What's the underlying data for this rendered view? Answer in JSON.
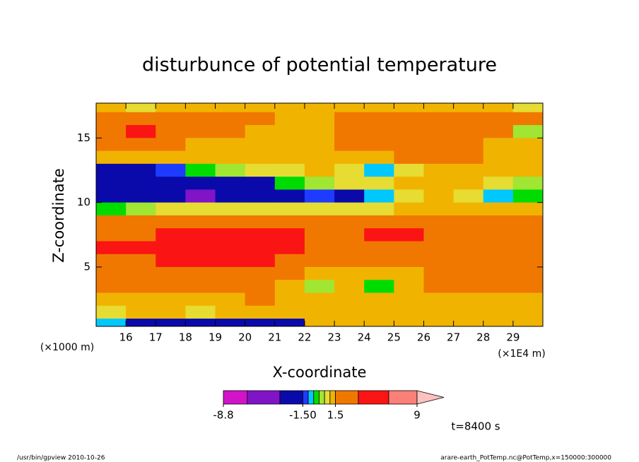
{
  "chart_data": {
    "type": "contour",
    "title": "disturbunce of potential temperature",
    "xlabel": "X-coordinate",
    "ylabel": "Z-coordinate",
    "x_unit": "(×1E4 m)",
    "y_unit": "(×1000 m)",
    "annotation": "t=8400 s",
    "footer_left": "/usr/bin/gpview   2010-10-26",
    "footer_right": "arare-earth_PotTemp.nc@PotTemp,x=150000:300000",
    "xlim": [
      15,
      30
    ],
    "ylim": [
      0.4,
      17.7
    ],
    "xticks": [
      16,
      17,
      18,
      19,
      20,
      21,
      22,
      23,
      24,
      25,
      26,
      27,
      28,
      29
    ],
    "yticks": [
      5,
      10,
      15
    ],
    "x": [
      15.5,
      16.5,
      17.5,
      18.5,
      19.5,
      20.5,
      21.5,
      22.5,
      23.5,
      24.5,
      25.5,
      26.5,
      27.5,
      28.5,
      29.5
    ],
    "z": [
      17.5,
      16.5,
      15.5,
      14.5,
      13.5,
      12.5,
      11.5,
      10.5,
      9.5,
      8.5,
      7.5,
      6.5,
      5.5,
      4.5,
      3.5,
      2.5,
      1.5,
      0.5
    ],
    "values": [
      [
        1.2,
        0.8,
        1.2,
        1.2,
        1.2,
        1.1,
        1.2,
        1.2,
        1.2,
        1.2,
        1.2,
        1.2,
        1.2,
        1.2,
        0.8
      ],
      [
        2.5,
        2.5,
        1.8,
        2.5,
        2.5,
        1.8,
        1.2,
        1.2,
        1.8,
        2.5,
        2.5,
        2.5,
        1.8,
        2.5,
        1.8
      ],
      [
        2.5,
        5,
        2.5,
        2.5,
        1.8,
        1.2,
        1.2,
        1.2,
        2.5,
        2.5,
        2.5,
        2.5,
        2.5,
        1.8,
        0.3
      ],
      [
        1.8,
        2.5,
        1.8,
        1.2,
        1.2,
        1.2,
        1.2,
        1.2,
        1.8,
        1.8,
        1.8,
        1.8,
        1.8,
        1.2,
        1.2
      ],
      [
        1.2,
        1.2,
        1.2,
        1.2,
        1.2,
        1.2,
        1.2,
        1.2,
        1.2,
        1.2,
        1.8,
        1.8,
        1.8,
        1.2,
        1.2
      ],
      [
        -2,
        -2,
        -1.2,
        -0.2,
        0.3,
        0.8,
        0.7,
        1.2,
        0.7,
        -0.7,
        0.8,
        1.2,
        1.2,
        1.2,
        1.2
      ],
      [
        -2.5,
        -2.5,
        -2.5,
        -2.5,
        -2.5,
        -2,
        -0.2,
        0.3,
        0.7,
        0.8,
        1.2,
        1.2,
        1.2,
        0.8,
        0.3
      ],
      [
        -2.5,
        -3,
        -3,
        -4,
        -3,
        -2.5,
        -2.5,
        -1.2,
        -2,
        -0.7,
        0.8,
        1.2,
        0.8,
        -0.7,
        -0.2
      ],
      [
        -0.2,
        0.3,
        0.8,
        0.8,
        0.8,
        0.8,
        0.8,
        0.8,
        0.8,
        0.8,
        1.2,
        1.2,
        1.2,
        1.2,
        1.2
      ],
      [
        2.5,
        2.5,
        2.5,
        2.5,
        2.5,
        2.5,
        2.5,
        2.5,
        2.5,
        2.5,
        2.5,
        2.5,
        2.5,
        2.5,
        2.5
      ],
      [
        2.5,
        2.5,
        5,
        5,
        5,
        5,
        5,
        2.5,
        2.5,
        5,
        5,
        2.5,
        2.5,
        2.5,
        2.5
      ],
      [
        5,
        5,
        5,
        5,
        5,
        5,
        5,
        2.5,
        2.5,
        2.5,
        2.5,
        2.5,
        2.5,
        2.5,
        2.5
      ],
      [
        2.5,
        2.5,
        5,
        5,
        5,
        5,
        2.5,
        2.5,
        2.5,
        2.5,
        2.5,
        2.5,
        2.5,
        2.5,
        2.5
      ],
      [
        2.5,
        2.5,
        2.5,
        2.5,
        2.5,
        2.5,
        1.8,
        1.2,
        1.2,
        1.2,
        1.2,
        1.8,
        2.5,
        2.5,
        2.5
      ],
      [
        1.8,
        1.8,
        1.8,
        1.8,
        1.8,
        1.8,
        1.2,
        0.3,
        1.2,
        -0.2,
        1.2,
        1.8,
        1.8,
        1.8,
        1.8
      ],
      [
        1.2,
        1.2,
        1.2,
        1.2,
        1.2,
        1.8,
        1.2,
        1.2,
        1.2,
        1.2,
        1.2,
        1.2,
        1.2,
        1.2,
        1.2
      ],
      [
        0.8,
        1.2,
        1.2,
        0.8,
        1.2,
        1.2,
        1.2,
        1.2,
        1.2,
        1.2,
        1.2,
        1.2,
        1.2,
        1.2,
        1.2
      ],
      [
        -0.7,
        -2,
        -2.5,
        -2.5,
        -3,
        -3,
        -2,
        1.2,
        1.2,
        1.2,
        1.2,
        1.2,
        1.2,
        1.2,
        1.2
      ]
    ],
    "levels": [
      -8.8,
      -6.6,
      -3.6,
      -1.5,
      -1.0,
      -0.5,
      0,
      0.5,
      1.0,
      1.5,
      3.6,
      6.4,
      9
    ],
    "colors": [
      "#d214c8",
      "#8214c8",
      "#0a0aaa",
      "#1e3cff",
      "#00c8ff",
      "#00dc00",
      "#a0e632",
      "#e6dc32",
      "#f0b400",
      "#f07800",
      "#fa1414",
      "#fa8078"
    ],
    "over_color": "#ffc0c0",
    "colorbar_ticks": [
      -8.8,
      {
        "value": -1.5,
        "label": "-1.50"
      },
      1.5,
      9
    ]
  }
}
